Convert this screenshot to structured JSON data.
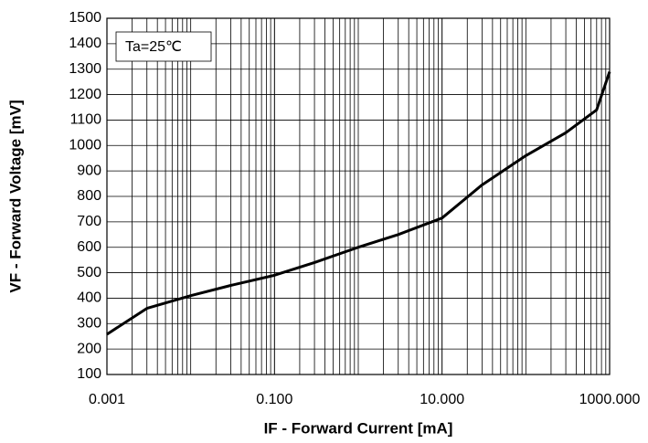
{
  "chart_data": {
    "type": "line",
    "x_label": "IF - Forward Current [mA]",
    "y_label": "VF - Forward Voltage [mV]",
    "annotation": "Ta=25℃",
    "log_x": true,
    "grid": true,
    "x": [
      0.001,
      0.003,
      0.01,
      0.03,
      0.1,
      0.3,
      1,
      3,
      10,
      30,
      100,
      300,
      700,
      1000
    ],
    "series": [
      {
        "name": "VF",
        "color": "#000000",
        "values": [
          258,
          360,
          410,
          450,
          490,
          540,
          600,
          650,
          715,
          845,
          960,
          1050,
          1140,
          1290
        ]
      }
    ],
    "xlim": [
      0.001,
      1000
    ],
    "xticks": [
      0.001,
      {
        "value": 0.1,
        "label": "0.100"
      },
      {
        "value": 10,
        "label": "10.000"
      },
      {
        "value": 1000,
        "label": "1000.000"
      }
    ],
    "xminorticks": [
      0.002,
      0.003,
      0.004,
      0.005,
      0.006,
      0.007,
      0.008,
      0.009,
      0.01,
      0.02,
      0.03,
      0.04,
      0.05,
      0.06,
      0.07,
      0.08,
      0.09,
      0.2,
      0.3,
      0.4,
      0.5,
      0.6,
      0.7,
      0.8,
      0.9,
      1,
      2,
      3,
      4,
      5,
      6,
      7,
      8,
      9,
      20,
      30,
      40,
      50,
      60,
      70,
      80,
      90,
      100,
      200,
      300,
      400,
      500,
      600,
      700,
      800,
      900
    ],
    "ylim": [
      100,
      1500
    ],
    "yticks": [
      100,
      200,
      300,
      400,
      500,
      600,
      700,
      800,
      900,
      1000,
      1100,
      1200,
      1300,
      1400,
      1500
    ]
  }
}
